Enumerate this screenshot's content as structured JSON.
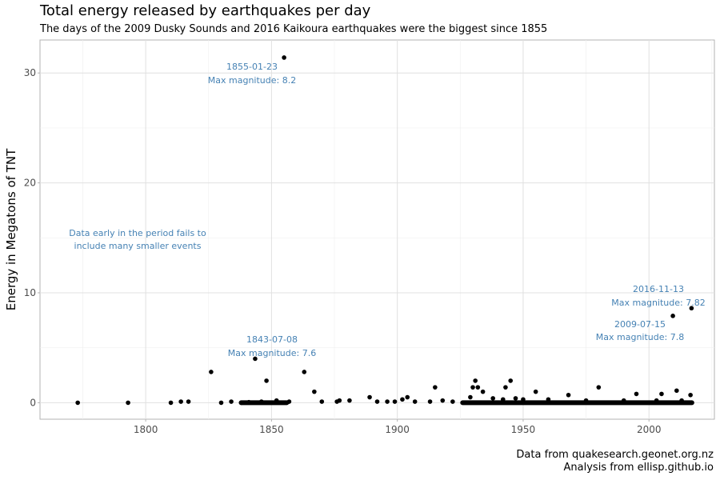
{
  "chart_data": {
    "type": "scatter",
    "title": "Total energy released by earthquakes per day",
    "subtitle": "The days of the 2009 Dusky Sounds and 2016 Kaikoura earthquakes were the biggest since 1855",
    "ylabel": "Energy in Megatons of TNT",
    "xlim": [
      1758,
      2026
    ],
    "ylim": [
      -1.5,
      33
    ],
    "x_ticks": [
      1800,
      1850,
      1900,
      1950,
      2000
    ],
    "y_ticks": [
      0,
      10,
      20,
      30
    ],
    "grid": true,
    "points": [
      {
        "x": 1773,
        "y": 0
      },
      {
        "x": 1793,
        "y": 0
      },
      {
        "x": 1810,
        "y": 0
      },
      {
        "x": 1814,
        "y": 0.1
      },
      {
        "x": 1817,
        "y": 0.1
      },
      {
        "x": 1826,
        "y": 2.8
      },
      {
        "x": 1830,
        "y": 0
      },
      {
        "x": 1834,
        "y": 0.1
      },
      {
        "x": 1838,
        "y": 0
      },
      {
        "x": 1841,
        "y": 0.05
      },
      {
        "x": 1843.5,
        "y": 4.0
      },
      {
        "x": 1846,
        "y": 0.1
      },
      {
        "x": 1848,
        "y": 2.0
      },
      {
        "x": 1852,
        "y": 0.2
      },
      {
        "x": 1855,
        "y": 31.4
      },
      {
        "x": 1857,
        "y": 0.1
      },
      {
        "x": 1863,
        "y": 2.8
      },
      {
        "x": 1867,
        "y": 1.0
      },
      {
        "x": 1870,
        "y": 0.1
      },
      {
        "x": 1876,
        "y": 0.1
      },
      {
        "x": 1877,
        "y": 0.2
      },
      {
        "x": 1881,
        "y": 0.2
      },
      {
        "x": 1889,
        "y": 0.5
      },
      {
        "x": 1892,
        "y": 0.1
      },
      {
        "x": 1896,
        "y": 0.1
      },
      {
        "x": 1899,
        "y": 0.1
      },
      {
        "x": 1902,
        "y": 0.3
      },
      {
        "x": 1904,
        "y": 0.5
      },
      {
        "x": 1907,
        "y": 0.1
      },
      {
        "x": 1913,
        "y": 0.1
      },
      {
        "x": 1915,
        "y": 1.4
      },
      {
        "x": 1918,
        "y": 0.2
      },
      {
        "x": 1922,
        "y": 0.1
      },
      {
        "x": 1929,
        "y": 0.5
      },
      {
        "x": 1930,
        "y": 1.4
      },
      {
        "x": 1931,
        "y": 2.0
      },
      {
        "x": 1932,
        "y": 1.4
      },
      {
        "x": 1934,
        "y": 1.0
      },
      {
        "x": 1938,
        "y": 0.4
      },
      {
        "x": 1942,
        "y": 0.3
      },
      {
        "x": 1943,
        "y": 1.4
      },
      {
        "x": 1945,
        "y": 2.0
      },
      {
        "x": 1947,
        "y": 0.4
      },
      {
        "x": 1950,
        "y": 0.3
      },
      {
        "x": 1955,
        "y": 1.0
      },
      {
        "x": 1960,
        "y": 0.3
      },
      {
        "x": 1968,
        "y": 0.7
      },
      {
        "x": 1975,
        "y": 0.2
      },
      {
        "x": 1980,
        "y": 1.4
      },
      {
        "x": 1990,
        "y": 0.2
      },
      {
        "x": 1995,
        "y": 0.8
      },
      {
        "x": 2003,
        "y": 0.2
      },
      {
        "x": 2005,
        "y": 0.8
      },
      {
        "x": 2009.5,
        "y": 7.9
      },
      {
        "x": 2011,
        "y": 1.1
      },
      {
        "x": 2013,
        "y": 0.2
      },
      {
        "x": 2016.9,
        "y": 8.6
      },
      {
        "x": 2016.5,
        "y": 0.7
      }
    ],
    "dense_band": [
      [
        1837,
        1857
      ],
      [
        1925,
        2018
      ]
    ],
    "annotations": [
      {
        "id": "a1855",
        "x": 1855,
        "date": "1855-01-23",
        "mag": "Max magnitude: 8.2"
      },
      {
        "id": "a1843",
        "x": 1843.5,
        "date": "1843-07-08",
        "mag": "Max magnitude: 7.6"
      },
      {
        "id": "a2016",
        "x": 2016.9,
        "date": "2016-11-13",
        "mag": "Max magnitude: 7.82"
      },
      {
        "id": "a2009",
        "x": 2009.5,
        "date": "2009-07-15",
        "mag": "Max magnitude: 7.8"
      },
      {
        "id": "note",
        "line1": "Data early in the period fails to",
        "line2": "include many smaller events"
      }
    ],
    "caption_1": "Data from quakesearch.geonet.org.nz",
    "caption_2": "Analysis from ellisp.github.io"
  }
}
